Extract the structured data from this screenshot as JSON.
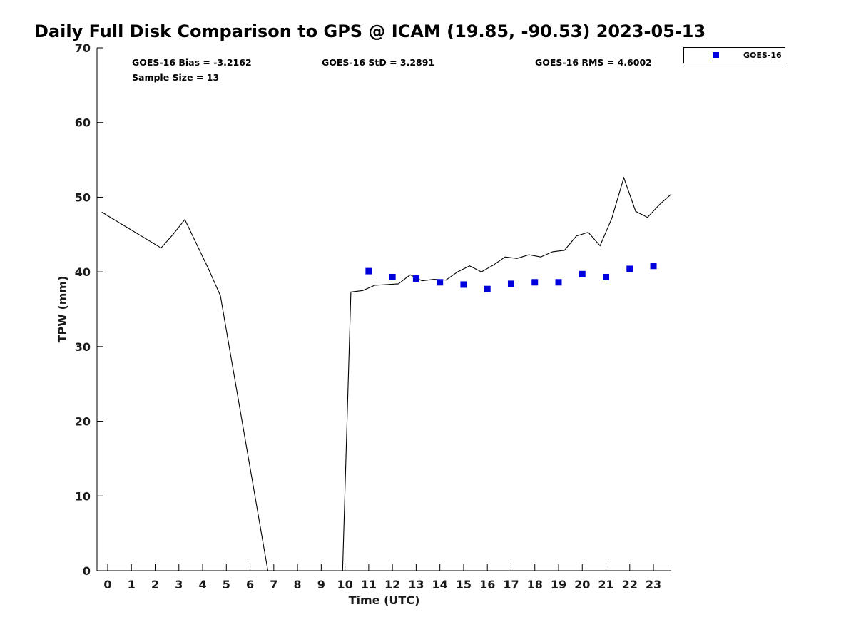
{
  "chart_data": {
    "type": "line",
    "title": "Daily Full Disk Comparison to GPS @ ICAM (19.85, -90.53) 2023-05-13",
    "xlabel": "Time (UTC)",
    "ylabel": "TPW (mm)",
    "xlim": [
      -0.45,
      23.75
    ],
    "ylim": [
      0,
      70
    ],
    "xticks": [
      0,
      1,
      2,
      3,
      4,
      5,
      6,
      7,
      8,
      9,
      10,
      11,
      12,
      13,
      14,
      15,
      16,
      17,
      18,
      19,
      20,
      21,
      22,
      23
    ],
    "yticks": [
      0,
      10,
      20,
      30,
      40,
      50,
      60,
      70
    ],
    "grid": false,
    "legend_position": "top-right, outside plot",
    "stats": {
      "bias": "GOES-16 Bias = -3.2162",
      "std": "GOES-16 StD = 3.2891",
      "rms": "GOES-16 RMS = 4.6002",
      "sample_size": "Sample Size = 13"
    },
    "series": [
      {
        "style": "line",
        "color": "#000000",
        "x": [
          -0.25,
          2.25,
          2.75,
          3.25,
          4.25,
          4.75,
          6.75,
          9.9,
          10.25,
          10.75,
          11.25,
          12.25,
          12.75,
          13.25,
          13.75,
          14.25,
          14.75,
          15.25,
          15.75,
          16.25,
          16.75,
          17.25,
          17.75,
          18.25,
          18.75,
          19.25,
          19.75,
          20.25,
          20.75,
          21.25,
          21.75,
          22.25,
          22.75,
          23.25,
          23.75
        ],
        "y": [
          48.0,
          43.2,
          45.0,
          47.0,
          40.4,
          36.8,
          0.0,
          0.0,
          37.3,
          37.5,
          38.2,
          38.4,
          39.6,
          38.8,
          39.0,
          38.9,
          40.0,
          40.8,
          40.0,
          40.9,
          42.0,
          41.8,
          42.3,
          42.0,
          42.7,
          42.9,
          44.8,
          45.3,
          43.5,
          47.2,
          52.6,
          48.1,
          47.3,
          49.0,
          50.4
        ]
      },
      {
        "name": "GOES-16",
        "style": "scatter",
        "marker": "square",
        "color": "#0000dd",
        "x": [
          11,
          12,
          13,
          14,
          15,
          16,
          17,
          18,
          19,
          20,
          21,
          22,
          23
        ],
        "y": [
          40.1,
          39.3,
          39.1,
          38.6,
          38.3,
          37.7,
          38.4,
          38.6,
          38.6,
          39.7,
          39.3,
          40.4,
          40.8
        ]
      }
    ]
  }
}
